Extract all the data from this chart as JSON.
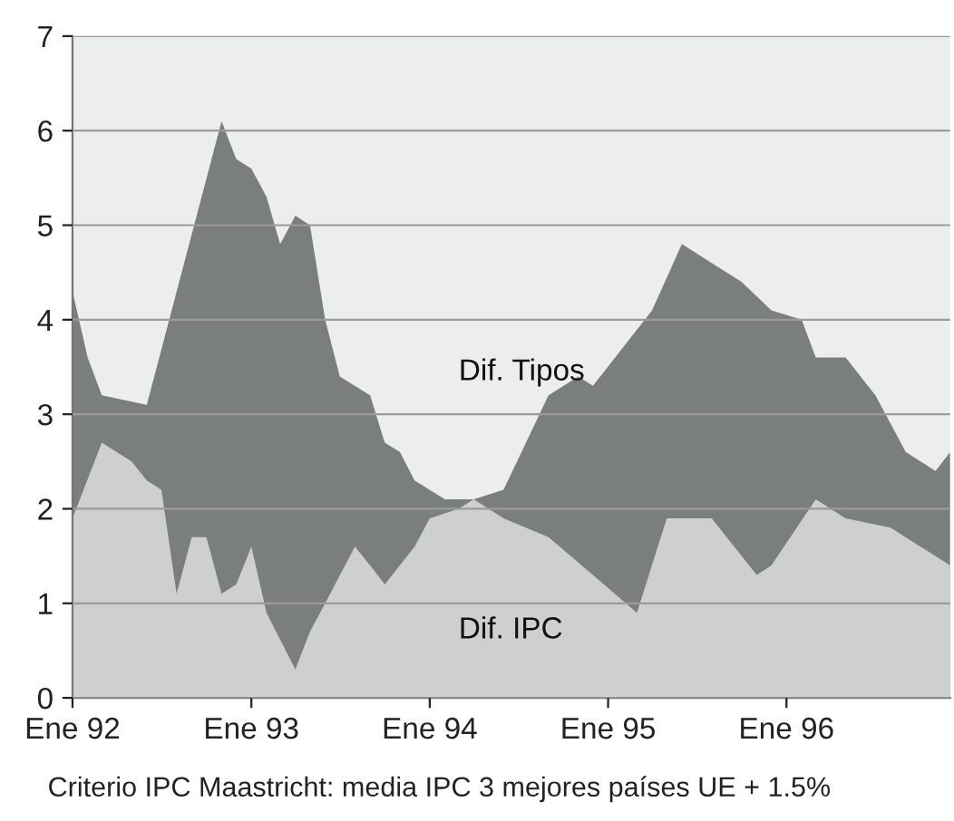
{
  "chart_data": {
    "type": "area",
    "annotations": [
      "Criterio IPC Maastricht: media IPC 3 mejores países UE + 1.5%"
    ],
    "series": [
      {
        "name": "Dif. Tipos",
        "color": "#7a7e7c",
        "x": [
          "1992-01",
          "1992-02",
          "1992-03",
          "1992-06",
          "1992-11",
          "1992-12",
          "1993-01",
          "1993-02",
          "1993-03",
          "1993-04",
          "1993-05",
          "1993-06",
          "1993-07",
          "1993-09",
          "1993-10",
          "1993-11",
          "1993-12",
          "1994-02",
          "1994-04",
          "1994-06",
          "1994-09",
          "1994-11",
          "1994-12",
          "1995-04",
          "1995-06",
          "1995-08",
          "1995-10",
          "1995-12",
          "1996-02",
          "1996-03",
          "1996-05",
          "1996-07",
          "1996-09",
          "1996-11",
          "1996-12"
        ],
        "values": [
          4.3,
          3.6,
          3.2,
          3.1,
          6.1,
          5.7,
          5.6,
          5.3,
          4.8,
          5.1,
          5.0,
          4.0,
          3.4,
          3.2,
          2.7,
          2.6,
          2.3,
          2.1,
          2.1,
          2.2,
          3.2,
          3.4,
          3.3,
          4.1,
          4.8,
          4.6,
          4.4,
          4.1,
          4.0,
          3.6,
          3.6,
          3.2,
          2.6,
          2.4,
          2.6
        ]
      },
      {
        "name": "Dif. IPC",
        "color": "#cdd0ce",
        "x": [
          "1992-01",
          "1992-03",
          "1992-05",
          "1992-06",
          "1992-07",
          "1992-08",
          "1992-09",
          "1992-10",
          "1992-11",
          "1992-12",
          "1993-01",
          "1993-02",
          "1993-04",
          "1993-05",
          "1993-06",
          "1993-08",
          "1993-09",
          "1993-10",
          "1993-12",
          "1994-01",
          "1994-03",
          "1994-04",
          "1994-06",
          "1994-09",
          "1994-12",
          "1995-03",
          "1995-05",
          "1995-08",
          "1995-11",
          "1995-12",
          "1996-03",
          "1996-05",
          "1996-08",
          "1996-10",
          "1996-12"
        ],
        "values": [
          1.9,
          2.7,
          2.5,
          2.3,
          2.2,
          1.1,
          1.7,
          1.7,
          1.1,
          1.2,
          1.6,
          0.9,
          0.3,
          0.7,
          1.0,
          1.6,
          1.4,
          1.2,
          1.6,
          1.9,
          2.0,
          2.1,
          1.9,
          1.7,
          1.3,
          0.9,
          1.9,
          1.9,
          1.3,
          1.4,
          2.1,
          1.9,
          1.8,
          1.6,
          1.4
        ]
      }
    ],
    "xlim": [
      "1992-01",
      "1996-12"
    ],
    "xticks": [
      {
        "value": "1992-01",
        "label": "Ene 92"
      },
      {
        "value": "1993-01",
        "label": "Ene 93"
      },
      {
        "value": "1994-01",
        "label": "Ene 94"
      },
      {
        "value": "1995-01",
        "label": "Ene 95"
      },
      {
        "value": "1996-01",
        "label": "Ene 96"
      }
    ],
    "ylim": [
      0,
      7
    ],
    "yticks": [
      0,
      1,
      2,
      3,
      4,
      5,
      6,
      7
    ],
    "grid": "y"
  }
}
